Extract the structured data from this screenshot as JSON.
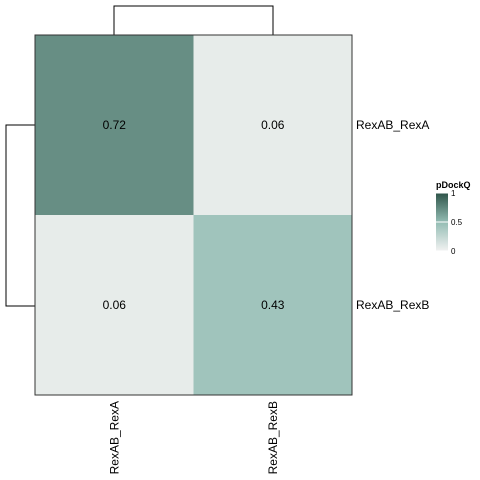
{
  "chart_data": {
    "type": "heatmap",
    "rows": [
      "RexAB_RexA",
      "RexAB_RexB"
    ],
    "columns": [
      "RexAB_RexA",
      "RexAB_RexB"
    ],
    "values": [
      [
        0.72,
        0.06
      ],
      [
        0.06,
        0.43
      ]
    ],
    "cell_labels": [
      [
        "0.72",
        "0.06"
      ],
      [
        "0.06",
        "0.43"
      ]
    ],
    "legend": {
      "title": "pDockQ",
      "range": [
        0,
        1
      ],
      "ticks": [
        {
          "value": 0,
          "label": "0"
        },
        {
          "value": 0.5,
          "label": "0.5"
        },
        {
          "value": 1,
          "label": "1"
        }
      ],
      "colors": [
        "#f2f2f2",
        "#93bcb3",
        "#2e5449"
      ]
    },
    "dendrograms": {
      "rows": true,
      "columns": true
    },
    "legend_placement": "right"
  }
}
